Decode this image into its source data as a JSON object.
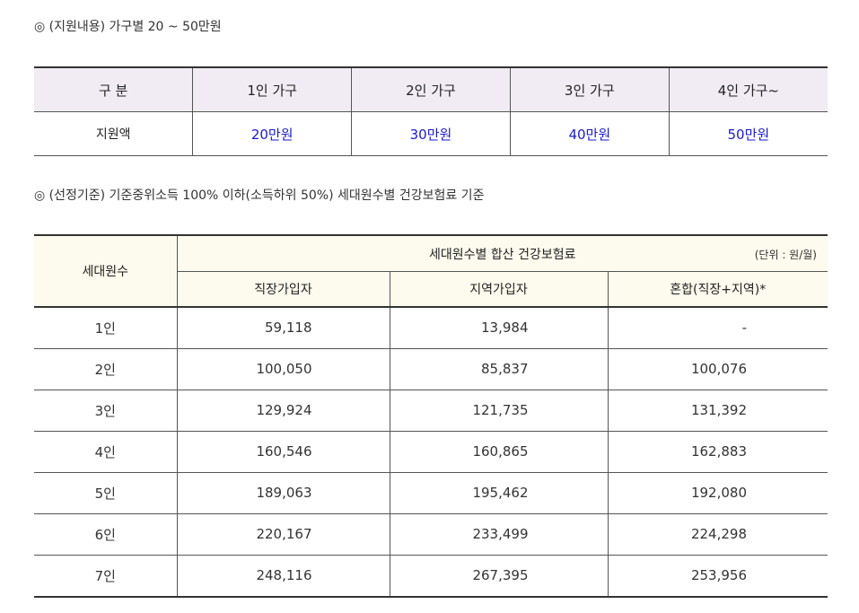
{
  "support": {
    "title": "◎ (지원내용) 가구별 20 ~ 50만원",
    "table": {
      "header": [
        "구 분",
        "1인 가구",
        "2인 가구",
        "3인 가구",
        "4인 가구~"
      ],
      "rows": [
        [
          "지원액",
          "20만원",
          "30만원",
          "40만원",
          "50만원"
        ]
      ]
    }
  },
  "criteria": {
    "title": "◎ (선정기준) 기준중위소득 100% 이하(소득하위 50%) 세대원수별 건강보험료 기준",
    "table": {
      "row_header": "세대원수",
      "group_header": "세대원수별 합산 건강보험료",
      "unit": "(단위 : 원/월)",
      "sub_headers": [
        "직장가입자",
        "지역가입자",
        "혼합(직장+지역)*"
      ],
      "rows": [
        [
          "1인",
          "59,118",
          "13,984",
          "-"
        ],
        [
          "2인",
          "100,050",
          "85,837",
          "100,076"
        ],
        [
          "3인",
          "129,924",
          "121,735",
          "131,392"
        ],
        [
          "4인",
          "160,546",
          "160,865",
          "162,883"
        ],
        [
          "5인",
          "189,063",
          "195,462",
          "192,080"
        ],
        [
          "6인",
          "220,167",
          "233,499",
          "224,298"
        ],
        [
          "7인",
          "248,116",
          "267,395",
          "253,956"
        ]
      ]
    }
  }
}
